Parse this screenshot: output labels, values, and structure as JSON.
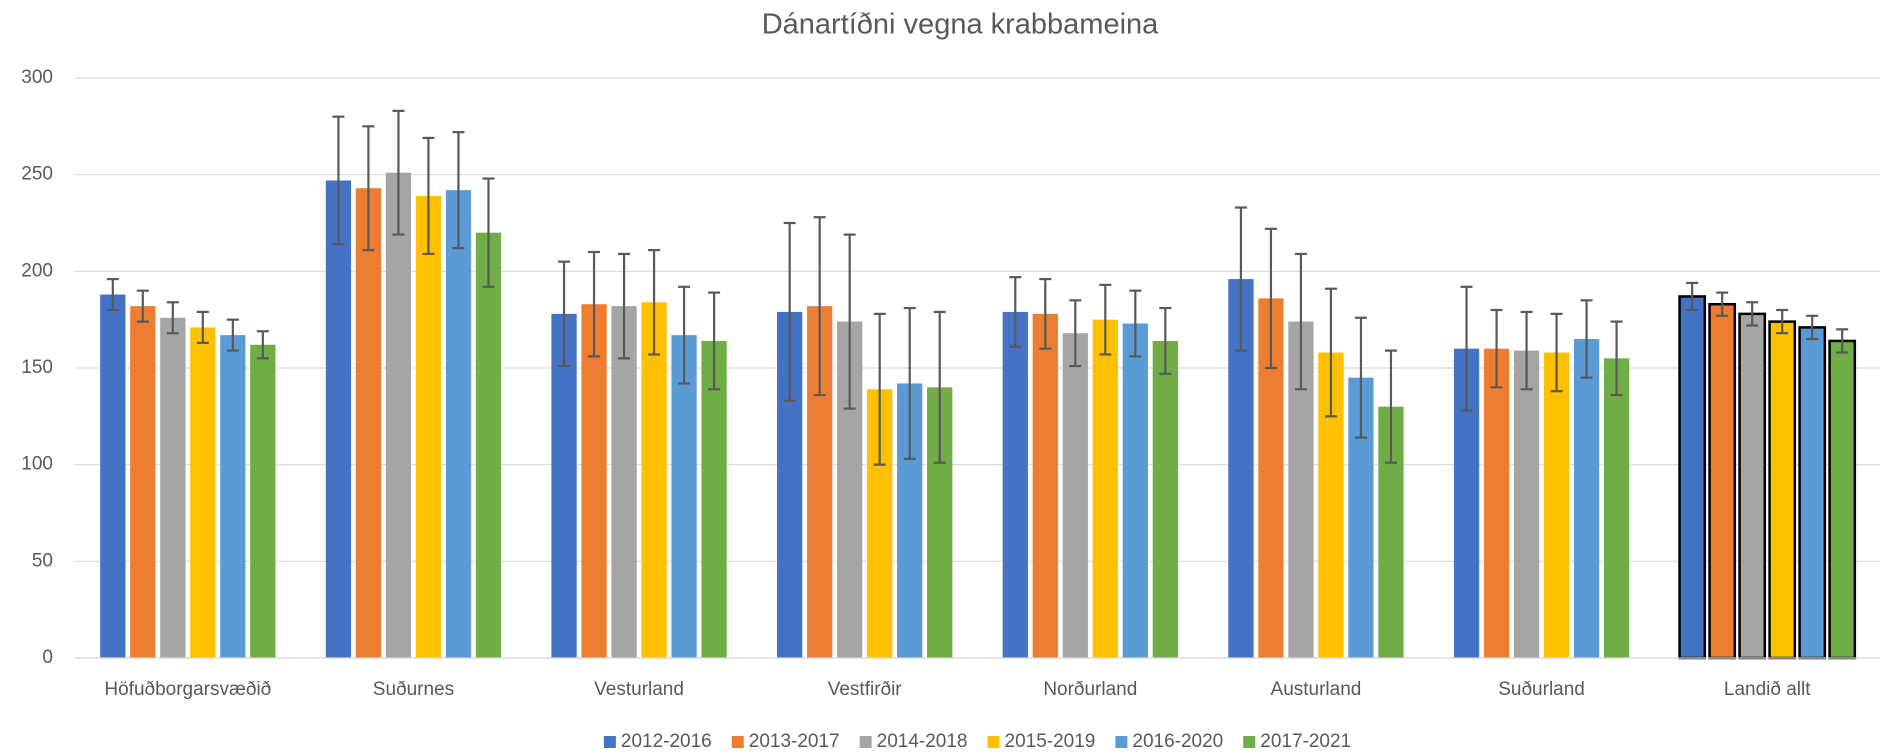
{
  "chart_data": {
    "type": "bar",
    "title": "Dánartíðni vegna krabbameina",
    "categories": [
      "Höfuðborgarsvæðið",
      "Suðurnes",
      "Vesturland",
      "Vestfirðir",
      "Norðurland",
      "Austurland",
      "Suðurland",
      "Landið allt"
    ],
    "series": [
      {
        "name": "2012-2016",
        "color": "#4472c4",
        "values": [
          188,
          247,
          178,
          179,
          179,
          196,
          160,
          187
        ],
        "errors": [
          8,
          33,
          27,
          46,
          18,
          37,
          32,
          7
        ]
      },
      {
        "name": "2013-2017",
        "color": "#ed7d31",
        "values": [
          182,
          243,
          183,
          182,
          178,
          186,
          160,
          183
        ],
        "errors": [
          8,
          32,
          27,
          46,
          18,
          36,
          20,
          6
        ]
      },
      {
        "name": "2014-2018",
        "color": "#a5a5a5",
        "values": [
          176,
          251,
          182,
          174,
          168,
          174,
          159,
          178
        ],
        "errors": [
          8,
          32,
          27,
          45,
          17,
          35,
          20,
          6
        ]
      },
      {
        "name": "2015-2019",
        "color": "#ffc000",
        "values": [
          171,
          239,
          184,
          139,
          175,
          158,
          158,
          174
        ],
        "errors": [
          8,
          30,
          27,
          39,
          18,
          33,
          20,
          6
        ]
      },
      {
        "name": "2016-2020",
        "color": "#5b9bd5",
        "values": [
          167,
          242,
          167,
          142,
          173,
          145,
          165,
          171
        ],
        "errors": [
          8,
          30,
          25,
          39,
          17,
          31,
          20,
          6
        ]
      },
      {
        "name": "2017-2021",
        "color": "#70ad47",
        "values": [
          162,
          220,
          164,
          140,
          164,
          130,
          155,
          164
        ],
        "errors": [
          7,
          28,
          25,
          39,
          17,
          29,
          19,
          6
        ]
      }
    ],
    "ylim": [
      0,
      300
    ],
    "yticks": [
      0,
      50,
      100,
      150,
      200,
      250,
      300
    ],
    "grid": true,
    "error_color": "#595959",
    "highlight": {
      "category": 7,
      "outline": "#000000"
    },
    "legend": "bottom"
  }
}
